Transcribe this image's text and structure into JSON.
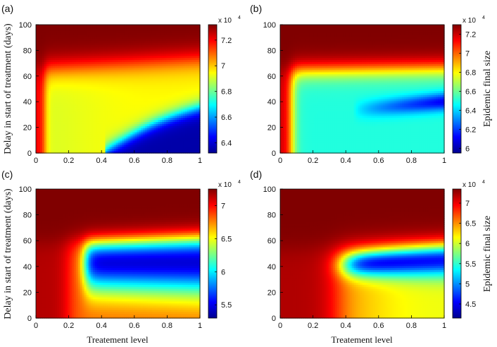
{
  "figure": {
    "ylabel": "Delay in start of treatment (days)",
    "xlabel": "Treatement level",
    "colorbar_label": "Epidemic final size",
    "colorbar_exponent": "x 10",
    "colorbar_exponent_power": "4"
  },
  "chart_data": [
    {
      "type": "heatmap",
      "panel_label": "(a)",
      "x_ticks": [
        "0",
        "0.2",
        "0.4",
        "0.6",
        "0.8",
        "1"
      ],
      "y_ticks": [
        "0",
        "20",
        "40",
        "60",
        "80",
        "100"
      ],
      "xlim": [
        0,
        1
      ],
      "ylim": [
        0,
        100
      ],
      "colorbar_ticks": [
        "6.4",
        "6.6",
        "6.8",
        "7",
        "7.2"
      ],
      "colorbar_range": [
        6.32,
        7.32
      ],
      "colorbar_tick_values": [
        6.4,
        6.6,
        6.8,
        7.0,
        7.2
      ],
      "colorbar_multiplier": "x 10^4",
      "region_values": {
        "high_delay": 7.32,
        "plateau": 6.9,
        "low_region": 6.38,
        "no_treatment": 7.2
      },
      "params": {
        "tau": 65,
        "rise": 0.055,
        "low_value": 6.36,
        "low_x0": 0.42,
        "low_k": 2.0,
        "low_edge": 0.055
      }
    },
    {
      "type": "heatmap",
      "panel_label": "(b)",
      "x_ticks": [
        "0",
        "0.2",
        "0.4",
        "0.6",
        "0.8",
        "1"
      ],
      "y_ticks": [
        "0",
        "20",
        "40",
        "60",
        "80",
        "100"
      ],
      "xlim": [
        0,
        1
      ],
      "ylim": [
        0,
        100
      ],
      "colorbar_ticks": [
        "6",
        "6.2",
        "6.4",
        "6.6",
        "6.8",
        "7",
        "7.2"
      ],
      "colorbar_range": [
        5.95,
        7.3
      ],
      "colorbar_tick_values": [
        6.0,
        6.2,
        6.4,
        6.6,
        6.8,
        7.0,
        7.2
      ],
      "colorbar_multiplier": "x 10^4",
      "colorbar_label": "Epidemic final size",
      "region_values": {
        "high_delay": 7.3,
        "plateau": 6.5,
        "trough": 6.1,
        "no_treatment": 7.2
      },
      "params": {
        "tau": 64,
        "rise": 0.03,
        "trough_value": 6.1,
        "trough_depth_start": 0.45
      }
    },
    {
      "type": "heatmap",
      "panel_label": "(c)",
      "x_ticks": [
        "0",
        "0.2",
        "0.4",
        "0.6",
        "0.8",
        "1"
      ],
      "y_ticks": [
        "0",
        "20",
        "40",
        "60",
        "80",
        "100"
      ],
      "xlim": [
        0,
        1
      ],
      "ylim": [
        0,
        100
      ],
      "colorbar_ticks": [
        "5.5",
        "6",
        "6.5",
        "7"
      ],
      "colorbar_range": [
        5.3,
        7.25
      ],
      "colorbar_tick_values": [
        5.5,
        6.0,
        6.5,
        7.0
      ],
      "colorbar_multiplier": "x 10^4",
      "region_values": {
        "high_delay": 7.25,
        "low_delay_plateau": 6.8,
        "band": 5.4,
        "no_treatment": 7.15
      },
      "params": {
        "tau": 58,
        "rise": 0.1,
        "band_x": 0.3,
        "band_center": 44,
        "band_low": 5.45
      }
    },
    {
      "type": "heatmap",
      "panel_label": "(d)",
      "x_ticks": [
        "0",
        "0.2",
        "0.4",
        "0.6",
        "0.8",
        "1"
      ],
      "y_ticks": [
        "0",
        "20",
        "40",
        "60",
        "80",
        "100"
      ],
      "xlim": [
        0,
        1
      ],
      "ylim": [
        0,
        100
      ],
      "colorbar_ticks": [
        "4.5",
        "5",
        "5.5",
        "6",
        "6.5",
        "7"
      ],
      "colorbar_range": [
        4.15,
        7.35
      ],
      "colorbar_tick_values": [
        4.5,
        5.0,
        5.5,
        6.0,
        6.5,
        7.0
      ],
      "colorbar_multiplier": "x 10^4",
      "colorbar_label": "Epidemic final size",
      "region_values": {
        "high_delay": 7.35,
        "low_delay_plateau": 6.4,
        "band": 4.3,
        "no_treatment": 7.2
      },
      "params": {
        "tau": 53,
        "rise": 0.2,
        "band_x": 0.36,
        "band_center": 47,
        "band_low": 4.3
      }
    }
  ]
}
